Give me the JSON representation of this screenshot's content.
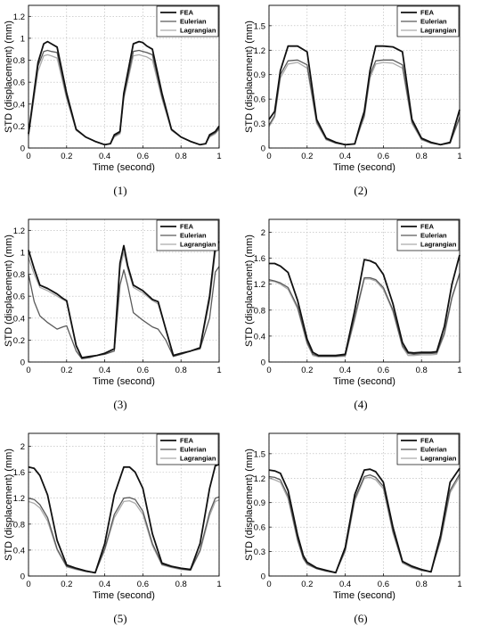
{
  "figure": {
    "legend_labels": [
      "FEA",
      "Eulerian",
      "Lagrangian"
    ],
    "series_colors": {
      "FEA": "#111111",
      "Eulerian": "#5a5a5a",
      "Lagrangian": "#ababab"
    }
  },
  "chart_data": [
    {
      "type": "line",
      "caption": "(1)",
      "xlabel": "Time (second)",
      "ylabel": "STD (displacement) (mm)",
      "xlim": [
        0,
        1
      ],
      "ylim": [
        0,
        1.3
      ],
      "xticks": [
        "0",
        "0.2",
        "0.4",
        "0.6",
        "0.8",
        "1"
      ],
      "yticks": [
        "0",
        "0.2",
        "0.4",
        "0.6",
        "0.8",
        "1",
        "1.2"
      ],
      "grid": true,
      "legend_position": "top-right",
      "x": [
        0,
        0.05,
        0.08,
        0.1,
        0.12,
        0.15,
        0.2,
        0.25,
        0.3,
        0.35,
        0.4,
        0.43,
        0.45,
        0.48,
        0.5,
        0.55,
        0.58,
        0.6,
        0.62,
        0.65,
        0.7,
        0.75,
        0.8,
        0.85,
        0.9,
        0.93,
        0.95,
        0.98,
        1
      ],
      "series": [
        {
          "name": "FEA",
          "values": [
            0.13,
            0.78,
            0.95,
            0.97,
            0.95,
            0.92,
            0.5,
            0.17,
            0.1,
            0.06,
            0.03,
            0.04,
            0.12,
            0.15,
            0.5,
            0.95,
            0.97,
            0.96,
            0.93,
            0.9,
            0.5,
            0.17,
            0.1,
            0.06,
            0.03,
            0.04,
            0.12,
            0.15,
            0.2
          ]
        },
        {
          "name": "Eulerian",
          "values": [
            0.12,
            0.75,
            0.88,
            0.89,
            0.88,
            0.87,
            0.47,
            0.17,
            0.1,
            0.06,
            0.03,
            0.04,
            0.11,
            0.14,
            0.47,
            0.88,
            0.89,
            0.88,
            0.87,
            0.85,
            0.47,
            0.17,
            0.1,
            0.06,
            0.03,
            0.04,
            0.11,
            0.14,
            0.18
          ]
        },
        {
          "name": "Lagrangian",
          "values": [
            0.11,
            0.7,
            0.84,
            0.85,
            0.84,
            0.82,
            0.45,
            0.16,
            0.1,
            0.06,
            0.03,
            0.04,
            0.1,
            0.13,
            0.45,
            0.84,
            0.85,
            0.84,
            0.83,
            0.8,
            0.45,
            0.16,
            0.1,
            0.06,
            0.03,
            0.04,
            0.1,
            0.13,
            0.17
          ]
        }
      ]
    },
    {
      "type": "line",
      "caption": "(2)",
      "xlabel": "Time (second)",
      "ylabel": "STD (displacement) (mm)",
      "xlim": [
        0,
        1
      ],
      "ylim": [
        0,
        1.75
      ],
      "xticks": [
        "0",
        "0.2",
        "0.4",
        "0.6",
        "0.8",
        "1"
      ],
      "yticks": [
        "0",
        "0.3",
        "0.6",
        "0.9",
        "1.2",
        "1.5"
      ],
      "grid": true,
      "legend_position": "top-right",
      "x": [
        0,
        0.03,
        0.06,
        0.1,
        0.15,
        0.2,
        0.25,
        0.3,
        0.35,
        0.4,
        0.45,
        0.48,
        0.5,
        0.53,
        0.56,
        0.6,
        0.65,
        0.7,
        0.75,
        0.8,
        0.85,
        0.9,
        0.95,
        1
      ],
      "series": [
        {
          "name": "FEA",
          "values": [
            0.35,
            0.45,
            0.95,
            1.25,
            1.25,
            1.18,
            0.35,
            0.12,
            0.07,
            0.04,
            0.05,
            0.3,
            0.45,
            0.95,
            1.25,
            1.25,
            1.24,
            1.18,
            0.35,
            0.12,
            0.07,
            0.04,
            0.07,
            0.47
          ]
        },
        {
          "name": "Eulerian",
          "values": [
            0.28,
            0.4,
            0.9,
            1.07,
            1.08,
            1.02,
            0.32,
            0.11,
            0.06,
            0.04,
            0.05,
            0.27,
            0.4,
            0.9,
            1.07,
            1.08,
            1.08,
            1.02,
            0.32,
            0.11,
            0.06,
            0.04,
            0.06,
            0.38
          ]
        },
        {
          "name": "Lagrangian",
          "values": [
            0.26,
            0.38,
            0.86,
            1.03,
            1.05,
            0.98,
            0.3,
            0.1,
            0.06,
            0.04,
            0.05,
            0.25,
            0.38,
            0.86,
            1.03,
            1.05,
            1.04,
            0.98,
            0.3,
            0.1,
            0.06,
            0.04,
            0.06,
            0.36
          ]
        }
      ]
    },
    {
      "type": "line",
      "caption": "(3)",
      "xlabel": "Time (second)",
      "ylabel": "STD (displacement) (mm)",
      "xlim": [
        0,
        1
      ],
      "ylim": [
        0,
        1.3
      ],
      "xticks": [
        "0",
        "0.2",
        "0.4",
        "0.6",
        "0.8",
        "1"
      ],
      "yticks": [
        "0",
        "0.2",
        "0.4",
        "0.6",
        "0.8",
        "1",
        "1.2"
      ],
      "grid": true,
      "legend_position": "top-right",
      "x": [
        0,
        0.03,
        0.06,
        0.1,
        0.15,
        0.18,
        0.2,
        0.25,
        0.28,
        0.32,
        0.36,
        0.4,
        0.45,
        0.48,
        0.5,
        0.52,
        0.55,
        0.6,
        0.65,
        0.68,
        0.72,
        0.76,
        0.8,
        0.85,
        0.9,
        0.95,
        0.98,
        1
      ],
      "series": [
        {
          "name": "FEA",
          "values": [
            1.02,
            0.85,
            0.7,
            0.67,
            0.62,
            0.58,
            0.56,
            0.15,
            0.04,
            0.05,
            0.06,
            0.08,
            0.12,
            0.9,
            1.06,
            0.88,
            0.7,
            0.65,
            0.57,
            0.55,
            0.3,
            0.06,
            0.08,
            0.1,
            0.13,
            0.6,
            1.05,
            1.1
          ]
        },
        {
          "name": "Eulerian",
          "values": [
            0.8,
            0.55,
            0.42,
            0.36,
            0.3,
            0.32,
            0.33,
            0.1,
            0.03,
            0.04,
            0.06,
            0.07,
            0.1,
            0.7,
            0.84,
            0.7,
            0.45,
            0.38,
            0.32,
            0.3,
            0.2,
            0.05,
            0.07,
            0.1,
            0.12,
            0.4,
            0.82,
            0.87
          ]
        },
        {
          "name": "Lagrangian",
          "values": [
            0.95,
            0.8,
            0.68,
            0.65,
            0.6,
            0.57,
            0.55,
            0.14,
            0.04,
            0.05,
            0.06,
            0.08,
            0.12,
            0.85,
            1.0,
            0.85,
            0.68,
            0.63,
            0.56,
            0.53,
            0.3,
            0.06,
            0.08,
            0.1,
            0.13,
            0.55,
            1.0,
            1.05
          ]
        }
      ]
    },
    {
      "type": "line",
      "caption": "(4)",
      "xlabel": "Time (second)",
      "ylabel": "STD (displacement) (mm)",
      "xlim": [
        0,
        1
      ],
      "ylim": [
        0,
        2.2
      ],
      "xticks": [
        "0",
        "0.2",
        "0.4",
        "0.6",
        "0.8",
        "1"
      ],
      "yticks": [
        "0",
        "0.4",
        "0.8",
        "1.2",
        "1.6",
        "2"
      ],
      "grid": true,
      "legend_position": "top-right",
      "x": [
        0,
        0.03,
        0.06,
        0.1,
        0.15,
        0.2,
        0.23,
        0.26,
        0.3,
        0.35,
        0.4,
        0.45,
        0.5,
        0.53,
        0.56,
        0.6,
        0.65,
        0.7,
        0.73,
        0.76,
        0.8,
        0.85,
        0.88,
        0.92,
        0.96,
        1
      ],
      "series": [
        {
          "name": "FEA",
          "values": [
            1.52,
            1.52,
            1.48,
            1.38,
            0.95,
            0.35,
            0.15,
            0.1,
            0.1,
            0.1,
            0.12,
            0.8,
            1.58,
            1.56,
            1.52,
            1.35,
            0.9,
            0.3,
            0.15,
            0.14,
            0.15,
            0.15,
            0.16,
            0.55,
            1.2,
            1.65
          ]
        },
        {
          "name": "Eulerian",
          "values": [
            1.27,
            1.25,
            1.22,
            1.15,
            0.85,
            0.3,
            0.12,
            0.09,
            0.09,
            0.09,
            0.1,
            0.7,
            1.3,
            1.3,
            1.27,
            1.15,
            0.8,
            0.25,
            0.13,
            0.12,
            0.13,
            0.13,
            0.14,
            0.45,
            1.0,
            1.37
          ]
        },
        {
          "name": "Lagrangian",
          "values": [
            1.25,
            1.24,
            1.2,
            1.12,
            0.82,
            0.28,
            0.1,
            0.08,
            0.08,
            0.08,
            0.09,
            0.65,
            1.28,
            1.28,
            1.25,
            1.12,
            0.78,
            0.23,
            0.1,
            0.1,
            0.11,
            0.11,
            0.12,
            0.42,
            0.98,
            1.35
          ]
        }
      ]
    },
    {
      "type": "line",
      "caption": "(5)",
      "xlabel": "Time (second)",
      "ylabel": "STD (displacement) (mm)",
      "xlim": [
        0,
        1
      ],
      "ylim": [
        0,
        2.2
      ],
      "xticks": [
        "0",
        "0.2",
        "0.4",
        "0.6",
        "0.8",
        "1"
      ],
      "yticks": [
        "0",
        "0.4",
        "0.8",
        "1.2",
        "1.6",
        "2"
      ],
      "grid": true,
      "legend_position": "top-right",
      "x": [
        0,
        0.03,
        0.06,
        0.1,
        0.15,
        0.2,
        0.25,
        0.3,
        0.35,
        0.4,
        0.45,
        0.5,
        0.53,
        0.56,
        0.6,
        0.65,
        0.7,
        0.75,
        0.8,
        0.85,
        0.9,
        0.95,
        0.98,
        1
      ],
      "series": [
        {
          "name": "FEA",
          "values": [
            1.68,
            1.66,
            1.55,
            1.25,
            0.55,
            0.17,
            0.12,
            0.08,
            0.05,
            0.5,
            1.25,
            1.68,
            1.68,
            1.6,
            1.35,
            0.65,
            0.2,
            0.15,
            0.12,
            0.1,
            0.5,
            1.35,
            1.7,
            1.72
          ]
        },
        {
          "name": "Eulerian",
          "values": [
            1.2,
            1.18,
            1.1,
            0.9,
            0.42,
            0.15,
            0.11,
            0.07,
            0.05,
            0.42,
            0.95,
            1.2,
            1.21,
            1.18,
            1.0,
            0.5,
            0.18,
            0.14,
            0.11,
            0.09,
            0.4,
            0.98,
            1.2,
            1.22
          ]
        },
        {
          "name": "Lagrangian",
          "values": [
            1.15,
            1.12,
            1.05,
            0.85,
            0.4,
            0.14,
            0.1,
            0.07,
            0.05,
            0.4,
            0.9,
            1.15,
            1.16,
            1.12,
            0.95,
            0.47,
            0.17,
            0.13,
            0.1,
            0.09,
            0.38,
            0.93,
            1.15,
            1.17
          ]
        }
      ]
    },
    {
      "type": "line",
      "caption": "(6)",
      "xlabel": "Time (second)",
      "ylabel": "STD (displacement) (mm)",
      "xlim": [
        0,
        1
      ],
      "ylim": [
        0,
        1.75
      ],
      "xticks": [
        "0",
        "0.2",
        "0.4",
        "0.6",
        "0.8",
        "1"
      ],
      "yticks": [
        "0",
        "0.3",
        "0.6",
        "0.9",
        "1.2",
        "1.5"
      ],
      "grid": true,
      "legend_position": "top-right",
      "x": [
        0,
        0.03,
        0.06,
        0.1,
        0.15,
        0.18,
        0.2,
        0.25,
        0.3,
        0.35,
        0.4,
        0.45,
        0.5,
        0.53,
        0.56,
        0.6,
        0.65,
        0.7,
        0.75,
        0.8,
        0.85,
        0.9,
        0.95,
        1
      ],
      "series": [
        {
          "name": "FEA",
          "values": [
            1.3,
            1.29,
            1.26,
            1.05,
            0.5,
            0.25,
            0.17,
            0.1,
            0.07,
            0.04,
            0.35,
            1.0,
            1.3,
            1.31,
            1.28,
            1.15,
            0.6,
            0.18,
            0.12,
            0.08,
            0.05,
            0.5,
            1.15,
            1.32
          ]
        },
        {
          "name": "Eulerian",
          "values": [
            1.22,
            1.21,
            1.18,
            0.98,
            0.45,
            0.22,
            0.15,
            0.09,
            0.06,
            0.04,
            0.32,
            0.95,
            1.22,
            1.24,
            1.21,
            1.1,
            0.55,
            0.17,
            0.11,
            0.07,
            0.05,
            0.45,
            1.05,
            1.25
          ]
        },
        {
          "name": "Lagrangian",
          "values": [
            1.2,
            1.18,
            1.15,
            0.95,
            0.43,
            0.21,
            0.14,
            0.09,
            0.06,
            0.04,
            0.3,
            0.92,
            1.2,
            1.21,
            1.18,
            1.07,
            0.53,
            0.16,
            0.1,
            0.07,
            0.05,
            0.43,
            1.02,
            1.22
          ]
        }
      ]
    }
  ]
}
